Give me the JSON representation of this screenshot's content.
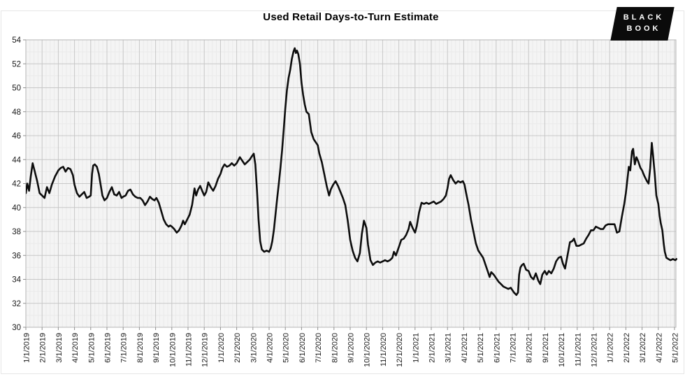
{
  "logo": {
    "line1": "BLACK",
    "line2": "BOOK",
    "bg": "#0b0b0b",
    "text_color": "#ffffff"
  },
  "colors": {
    "page_bg": "#ffffff",
    "plot_bg": "#f4f4f4",
    "grid_major": "#c7c7c7",
    "grid_minor": "#eaeaea",
    "plot_border": "#b5b5b5",
    "tick_mark": "#8f8f8f",
    "line": "#0d0d0d",
    "label_text": "#1a1a1a"
  },
  "chart_data": {
    "type": "line",
    "title": "Used Retail Days-to-Turn Estimate",
    "xlabel": "",
    "ylabel": "",
    "ylim": [
      30,
      54
    ],
    "y_ticks": [
      30,
      32,
      34,
      36,
      38,
      40,
      42,
      44,
      46,
      48,
      50,
      52,
      54
    ],
    "grid": "major-and-faint-minor",
    "legend": "none",
    "x_tick_labels": [
      "1/1/2019",
      "2/1/2019",
      "3/1/2019",
      "4/1/2019",
      "5/1/2019",
      "6/1/2019",
      "7/1/2019",
      "8/1/2019",
      "9/1/2019",
      "10/1/2019",
      "11/1/2019",
      "12/1/2019",
      "1/1/2020",
      "2/1/2020",
      "3/1/2020",
      "4/1/2020",
      "5/1/2020",
      "6/1/2020",
      "7/1/2020",
      "8/1/2020",
      "9/1/2020",
      "10/1/2020",
      "11/1/2020",
      "12/1/2020",
      "1/1/2021",
      "2/1/2021",
      "3/1/2021",
      "4/1/2021",
      "5/1/2021",
      "6/1/2021",
      "7/1/2021",
      "8/1/2021",
      "9/1/2021",
      "10/1/2021",
      "11/1/2021",
      "12/1/2021",
      "1/1/2022",
      "2/1/2022",
      "3/1/2022",
      "4/1/2022",
      "5/1/2022"
    ],
    "x_unit": "months since 1/1/2019",
    "series": [
      {
        "name": "Used Retail Days-to-Turn Estimate",
        "color": "#0d0d0d",
        "points": [
          [
            0,
            41.2
          ],
          [
            0.08,
            42
          ],
          [
            0.2,
            41.4
          ],
          [
            0.3,
            42.6
          ],
          [
            0.42,
            43.7
          ],
          [
            0.55,
            43
          ],
          [
            0.7,
            42.2
          ],
          [
            0.85,
            41.2
          ],
          [
            1,
            41
          ],
          [
            1.15,
            40.8
          ],
          [
            1.3,
            41.7
          ],
          [
            1.45,
            41.2
          ],
          [
            1.6,
            41.9
          ],
          [
            1.8,
            42.6
          ],
          [
            2,
            43.1
          ],
          [
            2.15,
            43.3
          ],
          [
            2.3,
            43.4
          ],
          [
            2.45,
            43
          ],
          [
            2.6,
            43.3
          ],
          [
            2.75,
            43.2
          ],
          [
            2.9,
            42.7
          ],
          [
            3,
            41.9
          ],
          [
            3.15,
            41.2
          ],
          [
            3.3,
            40.9
          ],
          [
            3.45,
            41.1
          ],
          [
            3.6,
            41.3
          ],
          [
            3.75,
            40.8
          ],
          [
            3.9,
            40.9
          ],
          [
            4,
            41
          ],
          [
            4.08,
            42.8
          ],
          [
            4.15,
            43.5
          ],
          [
            4.25,
            43.6
          ],
          [
            4.38,
            43.4
          ],
          [
            4.5,
            42.8
          ],
          [
            4.6,
            42
          ],
          [
            4.72,
            41
          ],
          [
            4.85,
            40.6
          ],
          [
            5,
            40.8
          ],
          [
            5.15,
            41.3
          ],
          [
            5.3,
            41.7
          ],
          [
            5.45,
            41.1
          ],
          [
            5.6,
            41
          ],
          [
            5.75,
            41.3
          ],
          [
            5.9,
            40.8
          ],
          [
            6,
            40.9
          ],
          [
            6.15,
            41
          ],
          [
            6.3,
            41.4
          ],
          [
            6.45,
            41.5
          ],
          [
            6.6,
            41.1
          ],
          [
            6.75,
            40.9
          ],
          [
            6.9,
            40.8
          ],
          [
            7.05,
            40.8
          ],
          [
            7.2,
            40.6
          ],
          [
            7.35,
            40.2
          ],
          [
            7.5,
            40.5
          ],
          [
            7.65,
            40.9
          ],
          [
            7.8,
            40.7
          ],
          [
            7.93,
            40.6
          ],
          [
            8.05,
            40.8
          ],
          [
            8.2,
            40.4
          ],
          [
            8.35,
            39.7
          ],
          [
            8.5,
            39
          ],
          [
            8.65,
            38.6
          ],
          [
            8.8,
            38.4
          ],
          [
            8.9,
            38.5
          ],
          [
            9,
            38.4
          ],
          [
            9.15,
            38.2
          ],
          [
            9.3,
            37.9
          ],
          [
            9.45,
            38.1
          ],
          [
            9.6,
            38.5
          ],
          [
            9.7,
            38.9
          ],
          [
            9.8,
            38.6
          ],
          [
            9.95,
            39
          ],
          [
            10.1,
            39.4
          ],
          [
            10.25,
            40.2
          ],
          [
            10.4,
            41.6
          ],
          [
            10.5,
            41
          ],
          [
            10.62,
            41.5
          ],
          [
            10.75,
            41.8
          ],
          [
            10.87,
            41.4
          ],
          [
            11,
            41
          ],
          [
            11.12,
            41.3
          ],
          [
            11.25,
            42.1
          ],
          [
            11.4,
            41.7
          ],
          [
            11.55,
            41.4
          ],
          [
            11.7,
            41.8
          ],
          [
            11.85,
            42.4
          ],
          [
            12,
            42.8
          ],
          [
            12.12,
            43.3
          ],
          [
            12.25,
            43.6
          ],
          [
            12.4,
            43.4
          ],
          [
            12.55,
            43.5
          ],
          [
            12.7,
            43.7
          ],
          [
            12.85,
            43.5
          ],
          [
            13,
            43.7
          ],
          [
            13.2,
            44.2
          ],
          [
            13.35,
            43.9
          ],
          [
            13.5,
            43.6
          ],
          [
            13.65,
            43.8
          ],
          [
            13.8,
            44
          ],
          [
            13.95,
            44.3
          ],
          [
            14.05,
            44.5
          ],
          [
            14.15,
            43.6
          ],
          [
            14.25,
            41.5
          ],
          [
            14.35,
            39
          ],
          [
            14.45,
            37.2
          ],
          [
            14.55,
            36.5
          ],
          [
            14.7,
            36.3
          ],
          [
            14.85,
            36.4
          ],
          [
            15,
            36.3
          ],
          [
            15.1,
            36.6
          ],
          [
            15.2,
            37.2
          ],
          [
            15.3,
            38.2
          ],
          [
            15.4,
            39.5
          ],
          [
            15.5,
            40.8
          ],
          [
            15.6,
            42
          ],
          [
            15.7,
            43.3
          ],
          [
            15.8,
            44.8
          ],
          [
            15.9,
            46.5
          ],
          [
            16,
            48.3
          ],
          [
            16.1,
            49.8
          ],
          [
            16.2,
            50.8
          ],
          [
            16.3,
            51.5
          ],
          [
            16.4,
            52.4
          ],
          [
            16.5,
            53
          ],
          [
            16.58,
            53.3
          ],
          [
            16.65,
            52.9
          ],
          [
            16.72,
            53.1
          ],
          [
            16.8,
            52.8
          ],
          [
            16.9,
            52
          ],
          [
            17,
            50.4
          ],
          [
            17.1,
            49.4
          ],
          [
            17.2,
            48.6
          ],
          [
            17.3,
            48
          ],
          [
            17.45,
            47.8
          ],
          [
            17.6,
            46.3
          ],
          [
            17.75,
            45.7
          ],
          [
            17.9,
            45.4
          ],
          [
            18,
            45.2
          ],
          [
            18.1,
            44.5
          ],
          [
            18.25,
            43.8
          ],
          [
            18.4,
            42.8
          ],
          [
            18.55,
            41.8
          ],
          [
            18.7,
            41
          ],
          [
            18.8,
            41.5
          ],
          [
            18.95,
            41.9
          ],
          [
            19.1,
            42.2
          ],
          [
            19.25,
            41.8
          ],
          [
            19.4,
            41.3
          ],
          [
            19.55,
            40.8
          ],
          [
            19.7,
            40.2
          ],
          [
            19.85,
            38.9
          ],
          [
            20,
            37.3
          ],
          [
            20.15,
            36.4
          ],
          [
            20.3,
            35.8
          ],
          [
            20.45,
            35.5
          ],
          [
            20.6,
            36.2
          ],
          [
            20.72,
            37.8
          ],
          [
            20.85,
            38.9
          ],
          [
            21,
            38.3
          ],
          [
            21.1,
            36.9
          ],
          [
            21.25,
            35.6
          ],
          [
            21.4,
            35.2
          ],
          [
            21.55,
            35.4
          ],
          [
            21.7,
            35.5
          ],
          [
            21.85,
            35.4
          ],
          [
            22,
            35.5
          ],
          [
            22.15,
            35.6
          ],
          [
            22.3,
            35.5
          ],
          [
            22.45,
            35.6
          ],
          [
            22.6,
            35.8
          ],
          [
            22.7,
            36.3
          ],
          [
            22.82,
            36
          ],
          [
            23,
            36.7
          ],
          [
            23.15,
            37.3
          ],
          [
            23.3,
            37.4
          ],
          [
            23.45,
            37.7
          ],
          [
            23.6,
            38.2
          ],
          [
            23.7,
            38.8
          ],
          [
            23.85,
            38.3
          ],
          [
            24,
            37.9
          ],
          [
            24.1,
            38.4
          ],
          [
            24.25,
            39.6
          ],
          [
            24.4,
            40.4
          ],
          [
            24.55,
            40.3
          ],
          [
            24.7,
            40.4
          ],
          [
            24.85,
            40.3
          ],
          [
            25,
            40.4
          ],
          [
            25.15,
            40.5
          ],
          [
            25.3,
            40.3
          ],
          [
            25.45,
            40.4
          ],
          [
            25.6,
            40.5
          ],
          [
            25.75,
            40.7
          ],
          [
            25.9,
            41
          ],
          [
            26,
            41.6
          ],
          [
            26.1,
            42.4
          ],
          [
            26.2,
            42.7
          ],
          [
            26.35,
            42.3
          ],
          [
            26.5,
            42
          ],
          [
            26.65,
            42.2
          ],
          [
            26.8,
            42.1
          ],
          [
            26.95,
            42.2
          ],
          [
            27.05,
            41.9
          ],
          [
            27.15,
            41.2
          ],
          [
            27.3,
            40.2
          ],
          [
            27.45,
            39
          ],
          [
            27.6,
            38
          ],
          [
            27.75,
            37
          ],
          [
            27.9,
            36.4
          ],
          [
            28.05,
            36.1
          ],
          [
            28.2,
            35.8
          ],
          [
            28.35,
            35.2
          ],
          [
            28.5,
            34.6
          ],
          [
            28.6,
            34.2
          ],
          [
            28.7,
            34.6
          ],
          [
            28.85,
            34.4
          ],
          [
            29,
            34.1
          ],
          [
            29.15,
            33.8
          ],
          [
            29.3,
            33.6
          ],
          [
            29.45,
            33.4
          ],
          [
            29.6,
            33.3
          ],
          [
            29.75,
            33.2
          ],
          [
            29.9,
            33.3
          ],
          [
            30,
            33.1
          ],
          [
            30.1,
            32.9
          ],
          [
            30.25,
            32.7
          ],
          [
            30.35,
            32.9
          ],
          [
            30.42,
            34.4
          ],
          [
            30.5,
            35
          ],
          [
            30.6,
            35.2
          ],
          [
            30.7,
            35.3
          ],
          [
            30.85,
            34.8
          ],
          [
            31,
            34.7
          ],
          [
            31.15,
            34.2
          ],
          [
            31.3,
            34
          ],
          [
            31.45,
            34.5
          ],
          [
            31.6,
            33.9
          ],
          [
            31.72,
            33.6
          ],
          [
            31.85,
            34.4
          ],
          [
            32,
            34.7
          ],
          [
            32.12,
            34.4
          ],
          [
            32.25,
            34.7
          ],
          [
            32.4,
            34.5
          ],
          [
            32.55,
            34.9
          ],
          [
            32.7,
            35.5
          ],
          [
            32.85,
            35.8
          ],
          [
            33,
            35.9
          ],
          [
            33.12,
            35.3
          ],
          [
            33.25,
            34.9
          ],
          [
            33.4,
            36
          ],
          [
            33.55,
            37.1
          ],
          [
            33.7,
            37.2
          ],
          [
            33.8,
            37.4
          ],
          [
            33.95,
            36.8
          ],
          [
            34.1,
            36.8
          ],
          [
            34.25,
            36.9
          ],
          [
            34.4,
            37
          ],
          [
            34.55,
            37.4
          ],
          [
            34.7,
            37.7
          ],
          [
            34.85,
            38.1
          ],
          [
            35,
            38.1
          ],
          [
            35.15,
            38.4
          ],
          [
            35.3,
            38.3
          ],
          [
            35.45,
            38.2
          ],
          [
            35.6,
            38.2
          ],
          [
            35.75,
            38.5
          ],
          [
            35.9,
            38.6
          ],
          [
            36.1,
            38.6
          ],
          [
            36.3,
            38.6
          ],
          [
            36.45,
            37.9
          ],
          [
            36.6,
            38
          ],
          [
            36.75,
            39.2
          ],
          [
            36.9,
            40.3
          ],
          [
            37,
            41.2
          ],
          [
            37.1,
            42.4
          ],
          [
            37.18,
            43.4
          ],
          [
            37.27,
            43.1
          ],
          [
            37.38,
            44.7
          ],
          [
            37.45,
            44.9
          ],
          [
            37.55,
            43.6
          ],
          [
            37.65,
            44.2
          ],
          [
            37.75,
            43.9
          ],
          [
            37.9,
            43.3
          ],
          [
            38,
            43.1
          ],
          [
            38.15,
            42.6
          ],
          [
            38.3,
            42.2
          ],
          [
            38.4,
            42
          ],
          [
            38.5,
            43.3
          ],
          [
            38.6,
            45.4
          ],
          [
            38.68,
            44.3
          ],
          [
            38.78,
            42.8
          ],
          [
            38.88,
            41
          ],
          [
            39,
            40.3
          ],
          [
            39.08,
            39.3
          ],
          [
            39.15,
            38.7
          ],
          [
            39.25,
            38.1
          ],
          [
            39.33,
            37
          ],
          [
            39.4,
            36.3
          ],
          [
            39.5,
            35.8
          ],
          [
            39.62,
            35.7
          ],
          [
            39.75,
            35.6
          ],
          [
            39.9,
            35.7
          ],
          [
            40.05,
            35.6
          ],
          [
            40.12,
            35.7
          ]
        ]
      }
    ]
  }
}
